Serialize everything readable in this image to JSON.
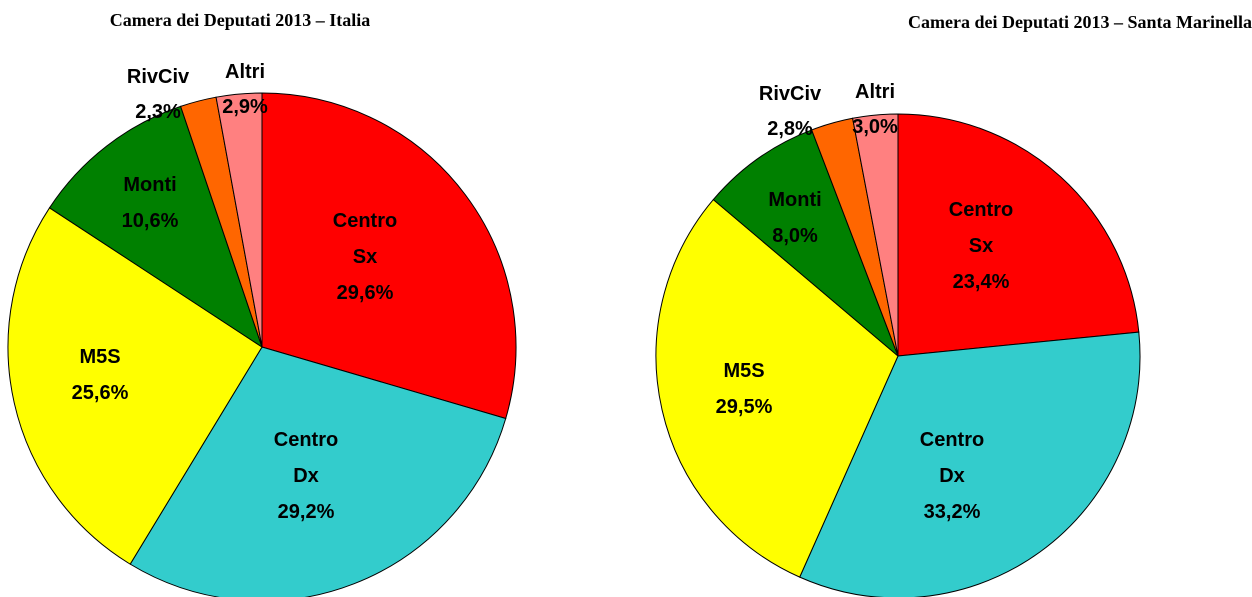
{
  "chart_data": [
    {
      "type": "pie",
      "title": "Camera dei Deputati 2013 – Italia",
      "categories": [
        "Centro Sx",
        "Centro Dx",
        "M5S",
        "Monti",
        "RivCiv",
        "Altri"
      ],
      "values": [
        29.6,
        29.2,
        25.6,
        10.6,
        2.3,
        2.9
      ],
      "value_labels": [
        "29,6%",
        "29,2%",
        "25,6%",
        "10,6%",
        "2,3%",
        "2,9%"
      ],
      "colors": [
        "#ff0000",
        "#33cccc",
        "#ffff00",
        "#008000",
        "#ff6600",
        "#ff8080"
      ]
    },
    {
      "type": "pie",
      "title": "Camera dei Deputati 2013 – Santa Marinella",
      "categories": [
        "Centro Sx",
        "Centro Dx",
        "M5S",
        "Monti",
        "RivCiv",
        "Altri"
      ],
      "values": [
        23.4,
        33.2,
        29.5,
        8.0,
        2.8,
        3.0
      ],
      "value_labels": [
        "23,4%",
        "33,2%",
        "29,5%",
        "8,0%",
        "2,8%",
        "3,0%"
      ],
      "colors": [
        "#ff0000",
        "#33cccc",
        "#ffff00",
        "#008000",
        "#ff6600",
        "#ff8080"
      ]
    }
  ]
}
